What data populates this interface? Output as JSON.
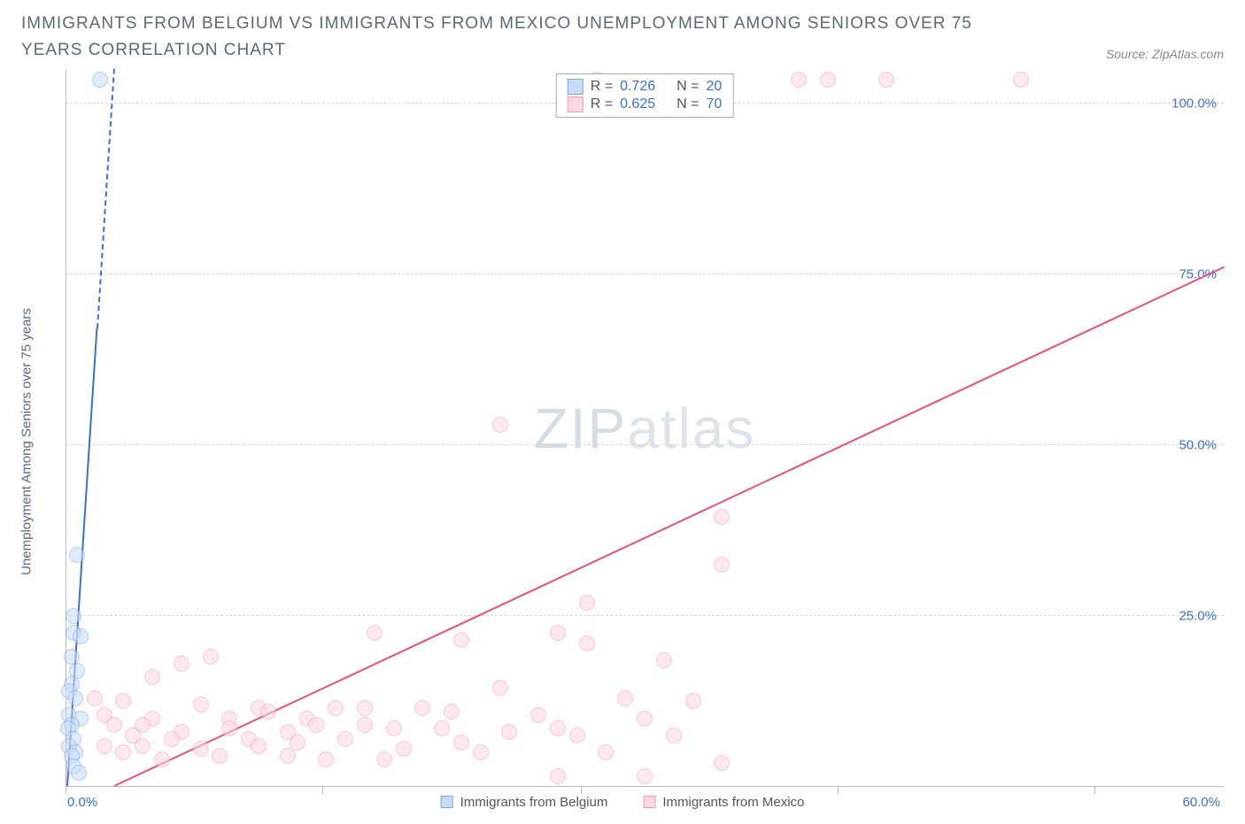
{
  "title": "IMMIGRANTS FROM BELGIUM VS IMMIGRANTS FROM MEXICO UNEMPLOYMENT AMONG SENIORS OVER 75 YEARS CORRELATION CHART",
  "source": "Source: ZipAtlas.com",
  "watermark": {
    "part1": "ZIP",
    "part2": "atlas"
  },
  "ylabel": "Unemployment Among Seniors over 75 years",
  "chart": {
    "type": "scatter",
    "background_color": "#ffffff",
    "grid_color": "#d8d8d8",
    "axis_color": "#bbbbbb",
    "tick_label_color": "#3a6fd8",
    "tick_fontsize": 15,
    "label_fontsize": 15,
    "xlim": [
      0,
      60
    ],
    "ylim": [
      0,
      105
    ],
    "yticks": [
      25,
      50,
      75,
      100
    ],
    "ytick_labels": [
      "25.0%",
      "50.0%",
      "75.0%",
      "100.0%"
    ],
    "xticks": [
      0,
      13.3,
      26.7,
      40,
      53.3
    ],
    "xlabel_min": "0.0%",
    "xlabel_max": "60.0%",
    "marker_radius": 9,
    "series": [
      {
        "id": "belgium",
        "label": "Immigrants from Belgium",
        "fill_color": "#c8dbf6",
        "stroke_color": "#7aa7e6",
        "fill_opacity": 0.55,
        "r_label": "R = ",
        "r_value": "0.726",
        "n_label": "N = ",
        "n_value": "20",
        "trend": {
          "x1": 0.1,
          "y1": 0,
          "x2": 2.5,
          "y2": 105,
          "color": "#3a6fd8",
          "width": 2.5,
          "dash_from_y": 67
        },
        "points": [
          [
            1.8,
            103.5
          ],
          [
            0.6,
            34
          ],
          [
            0.4,
            25
          ],
          [
            0.4,
            22.5
          ],
          [
            0.8,
            22
          ],
          [
            0.3,
            19
          ],
          [
            0.6,
            17
          ],
          [
            0.3,
            15
          ],
          [
            0.2,
            14
          ],
          [
            0.5,
            13
          ],
          [
            0.2,
            10.5
          ],
          [
            0.8,
            10
          ],
          [
            0.3,
            9
          ],
          [
            0.15,
            8.5
          ],
          [
            0.4,
            7
          ],
          [
            0.2,
            6
          ],
          [
            0.5,
            5
          ],
          [
            0.3,
            4.5
          ],
          [
            0.4,
            3
          ],
          [
            0.7,
            2
          ]
        ]
      },
      {
        "id": "mexico",
        "label": "Immigrants from Mexico",
        "fill_color": "#fcd6e0",
        "stroke_color": "#f29fb8",
        "fill_opacity": 0.55,
        "r_label": "R = ",
        "r_value": "0.625",
        "n_label": "N = ",
        "n_value": "70",
        "trend": {
          "x1": 2.5,
          "y1": 0,
          "x2": 60,
          "y2": 76,
          "color": "#ea4e7b",
          "width": 2,
          "dash_from_y": 999
        },
        "points": [
          [
            27.5,
            103.5
          ],
          [
            38,
            103.5
          ],
          [
            39.5,
            103.5
          ],
          [
            42.5,
            103.5
          ],
          [
            49.5,
            103.5
          ],
          [
            22.5,
            53
          ],
          [
            34,
            39.5
          ],
          [
            34,
            32.5
          ],
          [
            27,
            27
          ],
          [
            25.5,
            22.5
          ],
          [
            20.5,
            21.5
          ],
          [
            16,
            22.5
          ],
          [
            27,
            21
          ],
          [
            7.5,
            19
          ],
          [
            31,
            18.5
          ],
          [
            6,
            18
          ],
          [
            4.5,
            16
          ],
          [
            22.5,
            14.5
          ],
          [
            29,
            13
          ],
          [
            1.5,
            13
          ],
          [
            3,
            12.5
          ],
          [
            32.5,
            12.5
          ],
          [
            7,
            12
          ],
          [
            10,
            11.5
          ],
          [
            10.5,
            11
          ],
          [
            14,
            11.5
          ],
          [
            15.5,
            11.5
          ],
          [
            18.5,
            11.5
          ],
          [
            20,
            11
          ],
          [
            24.5,
            10.5
          ],
          [
            2,
            10.5
          ],
          [
            4.5,
            10
          ],
          [
            8.5,
            10
          ],
          [
            12.5,
            10
          ],
          [
            13,
            9
          ],
          [
            30,
            10
          ],
          [
            2.5,
            9
          ],
          [
            4,
            9
          ],
          [
            6,
            8
          ],
          [
            8.5,
            8.5
          ],
          [
            11.5,
            8
          ],
          [
            15.5,
            9
          ],
          [
            17,
            8.5
          ],
          [
            19.5,
            8.5
          ],
          [
            23,
            8
          ],
          [
            25.5,
            8.5
          ],
          [
            26.5,
            7.5
          ],
          [
            31.5,
            7.5
          ],
          [
            3.5,
            7.5
          ],
          [
            5.5,
            7
          ],
          [
            9.5,
            7
          ],
          [
            12,
            6.5
          ],
          [
            14.5,
            7
          ],
          [
            20.5,
            6.5
          ],
          [
            2,
            6
          ],
          [
            4,
            6
          ],
          [
            7,
            5.5
          ],
          [
            10,
            6
          ],
          [
            17.5,
            5.5
          ],
          [
            8,
            4.5
          ],
          [
            11.5,
            4.5
          ],
          [
            3,
            5
          ],
          [
            5,
            4
          ],
          [
            13.5,
            4
          ],
          [
            16.5,
            4
          ],
          [
            21.5,
            5
          ],
          [
            28,
            5
          ],
          [
            34,
            3.5
          ],
          [
            25.5,
            1.5
          ],
          [
            30,
            1.5
          ]
        ]
      }
    ]
  }
}
